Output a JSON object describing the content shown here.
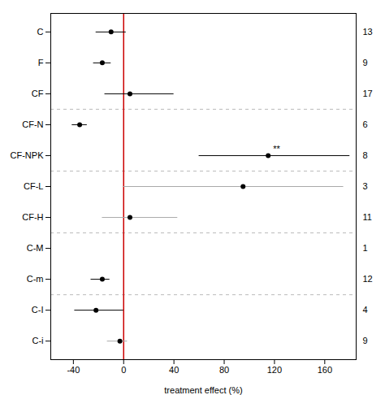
{
  "chart_data": {
    "type": "errorbar",
    "orientation": "horizontal",
    "xlabel": "treatment effect (%)",
    "categories": [
      "C",
      "F",
      "CF",
      "CF-N",
      "CF-NPK",
      "CF-L",
      "CF-H",
      "C-M",
      "C-m",
      "C-I",
      "C-i"
    ],
    "values": [
      -10,
      -17,
      5,
      -35,
      115,
      95,
      5,
      null,
      -17,
      -22,
      -3
    ],
    "xerr_left": [
      12,
      7,
      20,
      6,
      55,
      95,
      22,
      0,
      9,
      17,
      10
    ],
    "xerr_right": [
      12,
      7,
      35,
      6,
      65,
      80,
      38,
      0,
      6,
      22,
      6
    ],
    "n_values": [
      13,
      9,
      17,
      6,
      8,
      3,
      11,
      1,
      12,
      4,
      9
    ],
    "color": "#000000",
    "colors": [
      "#000000",
      "#000000",
      "#000000",
      "#000000",
      "#000000",
      "#aaaaaa",
      "#aaaaaa",
      "#000000",
      "#000000",
      "#000000",
      "#aaaaaa"
    ],
    "separators_after": [
      "CF",
      "CF-NPK",
      "CF-H",
      "C-m"
    ],
    "reference_line": {
      "value": 0,
      "color": "#cc0000"
    },
    "annotations": [
      {
        "text": "**",
        "category": "CF-NPK"
      }
    ],
    "xlim": [
      -58,
      185
    ],
    "xticks": [
      -40,
      0,
      40,
      80,
      120,
      160
    ],
    "grid": false
  }
}
